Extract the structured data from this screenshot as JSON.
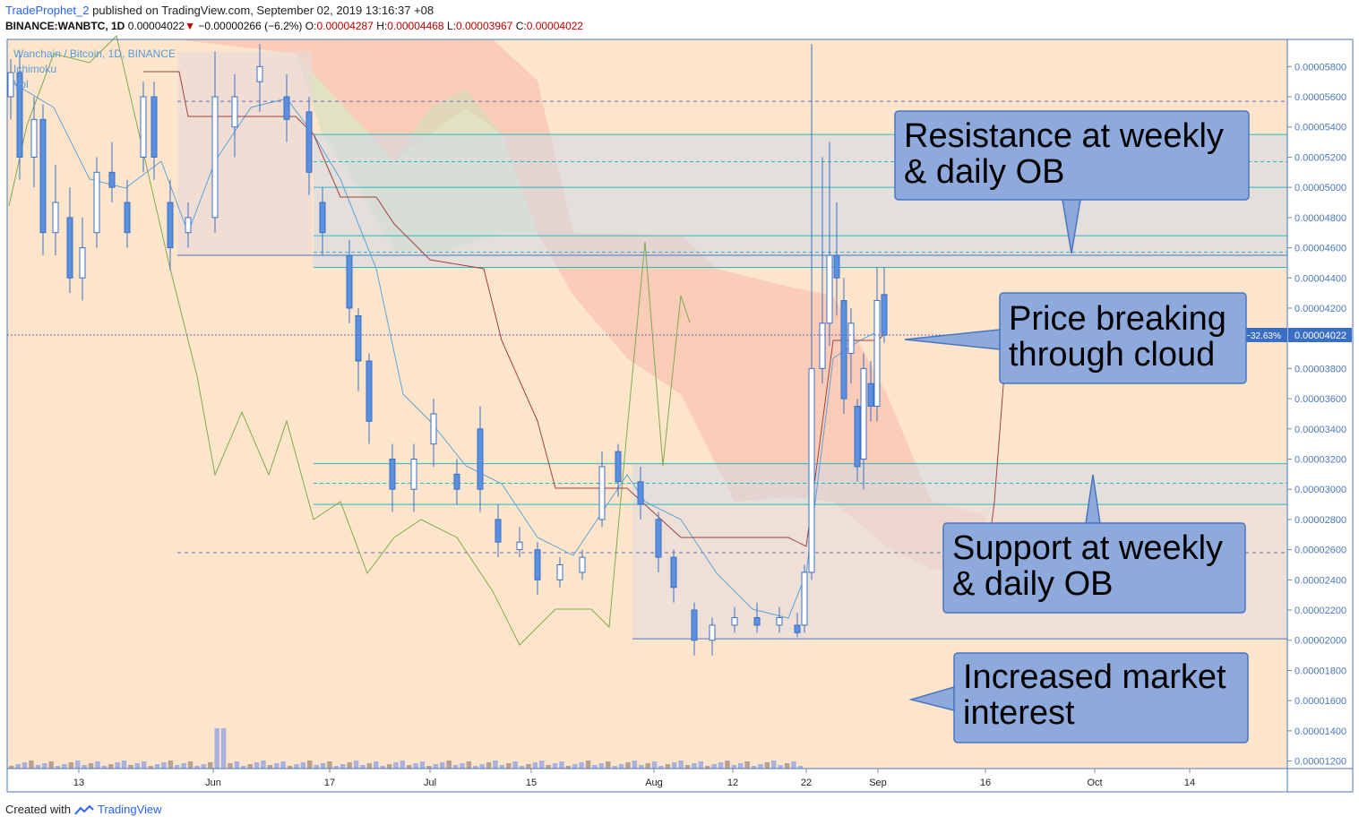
{
  "header": {
    "author": "TradeProphet_2",
    "published_text": "published on TradingView.com, September 02, 2019 13:16:37 +08",
    "symbol": "BINANCE:WANBTC, 1D",
    "last": "0.00004022",
    "change_arrow": "▼",
    "change": "−0.00000266 (−6.2%)",
    "o_label": "O:",
    "o": "0.00004287",
    "h_label": "H:",
    "h": "0.00004468",
    "l_label": "L:",
    "l": "0.00003967",
    "c_label": "C:",
    "c": "0.00004022"
  },
  "legend": {
    "pair": "Wanchain / Bitcoin, 1D, BINANCE",
    "indicator1": "Ichimoku",
    "indicator2": "Vol"
  },
  "footer": {
    "created_with": "Created with",
    "brand": "TradingView"
  },
  "colors": {
    "background": "#fde5cc",
    "bull": "#ffffff",
    "bear": "#5b8fe0",
    "conversion_line": "#5ba3d9",
    "base_line": "#a04040",
    "lagging_span": "#7faa4a",
    "cloud_bear": "#f9b8a8",
    "cloud_bull": "#c8e0b8",
    "volume_up": "#9aa8e0",
    "volume_down": "#a8968a",
    "ob_zone": "#d0dae8",
    "ob_line": "#2ab8c0",
    "callout_fill": "#8ea9db",
    "callout_stroke": "#4a76c0"
  },
  "chart_data": {
    "type": "candlestick",
    "x_axis_ticks": [
      "13",
      "Jun",
      "17",
      "Jul",
      "15",
      "Aug",
      "12",
      "22",
      "Sep",
      "16",
      "Oct",
      "14"
    ],
    "y_axis_ticks": [
      "0.00005800",
      "0.00005600",
      "0.00005400",
      "0.00005200",
      "0.00005000",
      "0.00004800",
      "0.00004600",
      "0.00004400",
      "0.00004200",
      "0.00003800",
      "0.00003600",
      "0.00003400",
      "0.00003200",
      "0.00003000",
      "0.00002800",
      "0.00002600",
      "0.00002400",
      "0.00002200",
      "0.00002000",
      "0.00001800",
      "0.00001600",
      "0.00001400",
      "0.00001200"
    ],
    "ylim": [
      1.15e-05,
      5.98e-05
    ],
    "last_price_label": "0.00004022",
    "last_price_change_label": "−32.63%",
    "last_price": 4.022e-05,
    "annotations": [
      "Resistance at weekly & daily OB",
      "Price breaking through cloud",
      "Support at weekly & daily OB",
      "Increased market interest"
    ],
    "resistance_zone": [
      4.47e-05,
      5.35e-05
    ],
    "support_zone": [
      2.9e-05,
      3.17e-05
    ],
    "dashed_levels": [
      5.57e-05,
      2.58e-05
    ]
  },
  "callouts": [
    {
      "line1": "Resistance at weekly",
      "line2": "& daily OB"
    },
    {
      "line1": "Price breaking",
      "line2": "through cloud"
    },
    {
      "line1": "Support at weekly",
      "line2": "& daily OB"
    },
    {
      "line1": "Increased market",
      "line2": "interest"
    }
  ]
}
